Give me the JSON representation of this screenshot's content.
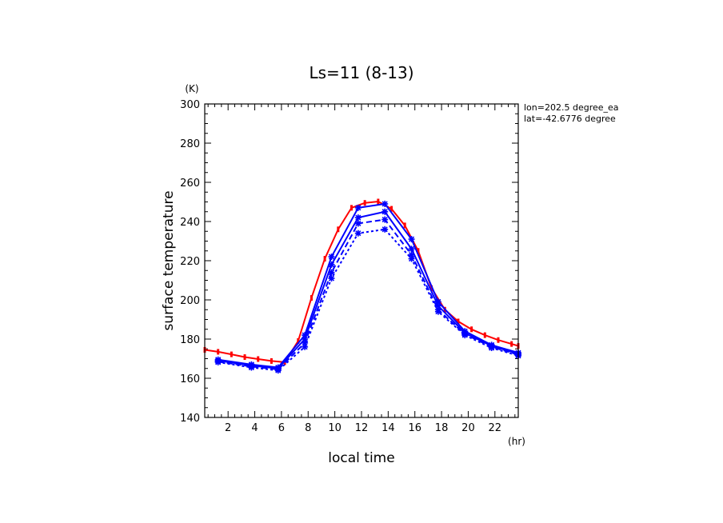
{
  "chart_data": {
    "type": "line",
    "title": "Ls=11 (8-13)",
    "xlabel": "local time",
    "ylabel": "surface temperature",
    "x_unit": "(hr)",
    "y_unit": "(K)",
    "xlim": [
      0.25,
      23.75
    ],
    "ylim": [
      140,
      300
    ],
    "x_ticks": [
      2,
      4,
      6,
      8,
      10,
      12,
      14,
      16,
      18,
      20,
      22
    ],
    "y_ticks": [
      140,
      160,
      180,
      200,
      220,
      240,
      260,
      280,
      300
    ],
    "annotations": [
      "lon=202.5 degree_ea",
      "lat=-42.6776 degree"
    ],
    "colors": {
      "red": "#ff0000",
      "blue": "#0000ff"
    },
    "series": [
      {
        "color": "#ff0000",
        "style": "solid",
        "markers": "red-dots",
        "x": [
          0.25,
          1.25,
          2.25,
          3.25,
          4.25,
          5.25,
          6.25,
          7.25,
          8.25,
          9.25,
          10.25,
          11.25,
          12.25,
          13.25,
          14.25,
          15.25,
          16.25,
          17.25,
          18.25,
          19.25,
          20.25,
          21.25,
          22.25,
          23.25,
          23.75
        ],
        "y": [
          174.5,
          173.5,
          172.2,
          170.8,
          169.8,
          168.8,
          168.2,
          179,
          201,
          221,
          236,
          247,
          249.5,
          250.2,
          246.5,
          238,
          225,
          206,
          195,
          189,
          185,
          182,
          179.5,
          177.5,
          176.5
        ]
      },
      {
        "color": "#0000ff",
        "style": "solid",
        "x": [
          1.25,
          3.75,
          5.75,
          7.75,
          9.75,
          11.75,
          13.75,
          15.75,
          17.75,
          19.75,
          21.75,
          23.75
        ],
        "y": [
          169.5,
          167,
          165.5,
          182,
          222,
          247,
          249,
          231,
          199,
          184,
          177,
          173
        ]
      },
      {
        "color": "#0000ff",
        "style": "solid",
        "x": [
          1.25,
          3.75,
          5.75,
          7.75,
          9.75,
          11.75,
          13.75,
          15.75,
          17.75,
          19.75,
          21.75,
          23.75
        ],
        "y": [
          169,
          166.5,
          165,
          180,
          218,
          242,
          245,
          226,
          197,
          183,
          176.5,
          172.5
        ]
      },
      {
        "color": "#0000ff",
        "style": "dashed",
        "x": [
          1.25,
          3.75,
          5.75,
          7.75,
          9.75,
          11.75,
          13.75,
          15.75,
          17.75,
          19.75,
          21.75,
          23.75
        ],
        "y": [
          168.5,
          166,
          164.5,
          178,
          214,
          239,
          241,
          223,
          195,
          182.5,
          176,
          172
        ]
      },
      {
        "color": "#0000ff",
        "style": "dotted",
        "x": [
          1.25,
          3.75,
          5.75,
          7.75,
          9.75,
          11.75,
          13.75,
          15.75,
          17.75,
          19.75,
          21.75,
          23.75
        ],
        "y": [
          168.2,
          165.5,
          164,
          176,
          211,
          234,
          236,
          221,
          194,
          182,
          175.5,
          171.5
        ]
      }
    ]
  }
}
